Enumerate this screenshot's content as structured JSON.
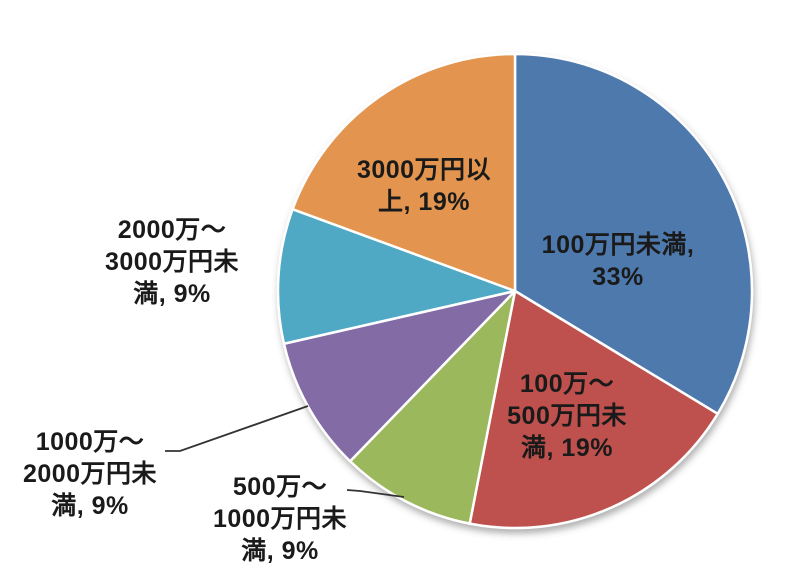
{
  "chart_data": {
    "type": "pie",
    "title": "",
    "unit": "%",
    "start_angle_deg": 0,
    "direction": "clockwise",
    "legend_position": "none",
    "label_style": "category-name-and-percent",
    "slices": [
      {
        "label": "100万円未満",
        "value": 33,
        "color": "#4E79AD",
        "lines": [
          "100万円未満,",
          "33%"
        ],
        "label_placement": "inside"
      },
      {
        "label": "100万〜500万円未満",
        "value": 19,
        "color": "#BE514E",
        "lines": [
          "100万〜",
          "500万円未",
          "満, 19%"
        ],
        "label_placement": "inside"
      },
      {
        "label": "500万〜1000万円未満",
        "value": 9,
        "color": "#9CB85C",
        "lines": [
          "500万〜",
          "1000万円未",
          "満, 9%"
        ],
        "label_placement": "outside-leader"
      },
      {
        "label": "1000万〜2000万円未満",
        "value": 9,
        "color": "#836CA6",
        "lines": [
          "1000万〜",
          "2000万円未",
          "満, 9%"
        ],
        "label_placement": "outside-leader"
      },
      {
        "label": "2000万〜3000万円未満",
        "value": 9,
        "color": "#4FA8C4",
        "lines": [
          "2000万〜",
          "3000万円未",
          "満, 9%"
        ],
        "label_placement": "outside"
      },
      {
        "label": "3000万円以上",
        "value": 19,
        "color": "#E39550",
        "lines": [
          "3000万円以",
          "上, 19%"
        ],
        "label_placement": "inside"
      }
    ],
    "slice_border_color": "#FFFFFF",
    "leader_line_color": "#333333",
    "label_text_color": "#1a1a1a"
  }
}
